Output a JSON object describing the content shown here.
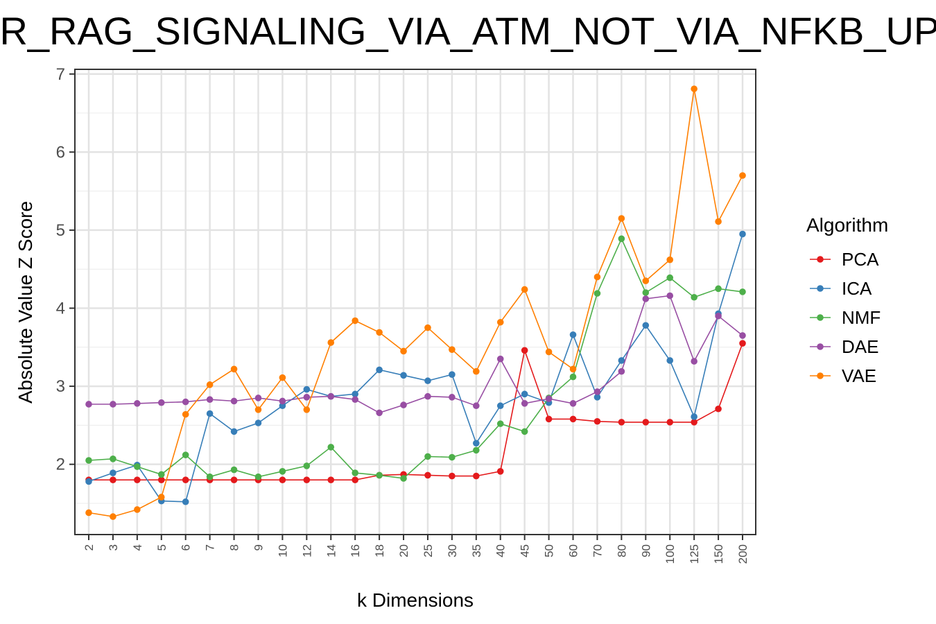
{
  "chart_data": {
    "type": "line",
    "title": "MEYER_RAG_SIGNALING_VIA_ATM_NOT_VIA_NFKB_UP",
    "xlabel": "k Dimensions",
    "ylabel": "Absolute Value Z Score",
    "ylim": [
      1.1,
      7.06
    ],
    "yticks": [
      2,
      3,
      4,
      5,
      6,
      7
    ],
    "grid": true,
    "legend": {
      "title": "Algorithm",
      "position": "right"
    },
    "categories": [
      "2",
      "3",
      "4",
      "5",
      "6",
      "7",
      "8",
      "9",
      "10",
      "12",
      "14",
      "16",
      "18",
      "20",
      "25",
      "30",
      "35",
      "40",
      "45",
      "50",
      "60",
      "70",
      "80",
      "90",
      "100",
      "125",
      "150",
      "200"
    ],
    "series": [
      {
        "name": "PCA",
        "color": "#E41A1C",
        "values": [
          1.8,
          1.8,
          1.8,
          1.8,
          1.8,
          1.8,
          1.8,
          1.8,
          1.8,
          1.8,
          1.8,
          1.8,
          1.86,
          1.87,
          1.86,
          1.85,
          1.85,
          1.91,
          3.46,
          2.58,
          2.58,
          2.55,
          2.54,
          2.54,
          2.54,
          2.54,
          2.71,
          3.55
        ]
      },
      {
        "name": "ICA",
        "color": "#377EB8",
        "values": [
          1.78,
          1.89,
          1.99,
          1.53,
          1.52,
          2.65,
          2.42,
          2.53,
          2.75,
          2.96,
          2.87,
          2.9,
          3.21,
          3.14,
          3.07,
          3.15,
          2.27,
          2.75,
          2.9,
          2.79,
          3.66,
          2.86,
          3.33,
          3.78,
          3.33,
          2.61,
          3.93,
          4.95
        ]
      },
      {
        "name": "NMF",
        "color": "#4DAF4A",
        "values": [
          2.05,
          2.07,
          1.97,
          1.87,
          2.12,
          1.84,
          1.93,
          1.84,
          1.91,
          1.98,
          2.22,
          1.89,
          1.86,
          1.82,
          2.1,
          2.09,
          2.18,
          2.52,
          2.42,
          2.85,
          3.12,
          4.19,
          4.89,
          4.2,
          4.39,
          4.14,
          4.25,
          4.21
        ]
      },
      {
        "name": "DAE",
        "color": "#984EA3",
        "values": [
          2.77,
          2.77,
          2.78,
          2.79,
          2.8,
          2.83,
          2.81,
          2.85,
          2.81,
          2.86,
          2.87,
          2.83,
          2.66,
          2.76,
          2.87,
          2.86,
          2.75,
          3.35,
          2.78,
          2.84,
          2.78,
          2.93,
          3.19,
          4.12,
          4.16,
          3.32,
          3.9,
          3.65
        ]
      },
      {
        "name": "VAE",
        "color": "#FF7F00",
        "values": [
          1.38,
          1.33,
          1.42,
          1.58,
          2.64,
          3.02,
          3.22,
          2.7,
          3.11,
          2.7,
          3.56,
          3.84,
          3.69,
          3.45,
          3.75,
          3.47,
          3.19,
          3.82,
          4.24,
          3.44,
          3.22,
          4.4,
          5.15,
          4.35,
          4.62,
          6.81,
          5.11,
          5.7
        ]
      }
    ]
  }
}
